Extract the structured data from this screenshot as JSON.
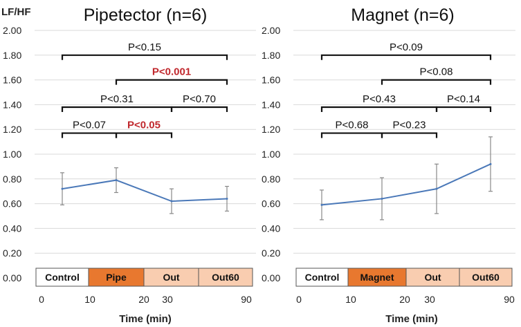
{
  "ylabel": "LF/HF",
  "xlabel": "Time (min)",
  "colors": {
    "series_line": "#4a78b8",
    "bracket": "#111111",
    "significant": "#c0282d",
    "grid": "#d9d9d9",
    "error_bar": "#888888",
    "phase_outline": "#555555"
  },
  "chart_data": [
    {
      "type": "line",
      "title": "Pipetector (n=6)",
      "xlabel": "Time (min)",
      "ylabel": "LF/HF",
      "ylim": [
        0,
        2.0
      ],
      "yticks": [
        "0.00",
        "0.20",
        "0.40",
        "0.60",
        "0.80",
        "1.00",
        "1.20",
        "1.40",
        "1.60",
        "1.80",
        "2.00"
      ],
      "xticks": [
        "0",
        "10",
        "20",
        "30",
        "90"
      ],
      "grid": true,
      "categories": [
        "Control",
        "Pipe",
        "Out",
        "Out60"
      ],
      "values": [
        0.72,
        0.79,
        0.62,
        0.64
      ],
      "error": [
        0.13,
        0.1,
        0.1,
        0.1
      ],
      "phases": [
        {
          "label": "Control",
          "color": "#ffffff"
        },
        {
          "label": "Pipe",
          "color": "#e8782f"
        },
        {
          "label": "Out",
          "color": "#f9cdb0"
        },
        {
          "label": "Out60",
          "color": "#f9cdb0"
        }
      ],
      "comparisons": [
        {
          "from": 0,
          "to": 3,
          "label": "P<0.15",
          "significant": false,
          "y": 1.8
        },
        {
          "from": 1,
          "to": 3,
          "label": "P<0.001",
          "significant": true,
          "y": 1.6
        },
        {
          "from": 0,
          "to": 2,
          "label": "P<0.31",
          "significant": false,
          "y": 1.38
        },
        {
          "from": 2,
          "to": 3,
          "label": "P<0.70",
          "significant": false,
          "y": 1.38
        },
        {
          "from": 0,
          "to": 1,
          "label": "P<0.07",
          "significant": false,
          "y": 1.17
        },
        {
          "from": 1,
          "to": 2,
          "label": "P<0.05",
          "significant": true,
          "y": 1.17
        }
      ]
    },
    {
      "type": "line",
      "title": "Magnet (n=6)",
      "xlabel": "Time (min)",
      "ylabel": "",
      "ylim": [
        0,
        2.0
      ],
      "yticks": [
        "0.00",
        "0.20",
        "0.40",
        "0.60",
        "0.80",
        "1.00",
        "1.20",
        "1.40",
        "1.60",
        "1.80",
        "2.00"
      ],
      "xticks": [
        "0",
        "10",
        "20",
        "30",
        "90"
      ],
      "grid": true,
      "categories": [
        "Control",
        "Magnet",
        "Out",
        "Out60"
      ],
      "values": [
        0.59,
        0.64,
        0.72,
        0.92
      ],
      "error": [
        0.12,
        0.17,
        0.2,
        0.22
      ],
      "phases": [
        {
          "label": "Control",
          "color": "#ffffff"
        },
        {
          "label": "Magnet",
          "color": "#e8782f"
        },
        {
          "label": "Out",
          "color": "#f9cdb0"
        },
        {
          "label": "Out60",
          "color": "#f9cdb0"
        }
      ],
      "comparisons": [
        {
          "from": 0,
          "to": 3,
          "label": "P<0.09",
          "significant": false,
          "y": 1.8
        },
        {
          "from": 1,
          "to": 3,
          "label": "P<0.08",
          "significant": false,
          "y": 1.6
        },
        {
          "from": 0,
          "to": 2,
          "label": "P<0.43",
          "significant": false,
          "y": 1.38
        },
        {
          "from": 2,
          "to": 3,
          "label": "P<0.14",
          "significant": false,
          "y": 1.38
        },
        {
          "from": 0,
          "to": 1,
          "label": "P<0.68",
          "significant": false,
          "y": 1.17
        },
        {
          "from": 1,
          "to": 2,
          "label": "P<0.23",
          "significant": false,
          "y": 1.17
        }
      ]
    }
  ]
}
